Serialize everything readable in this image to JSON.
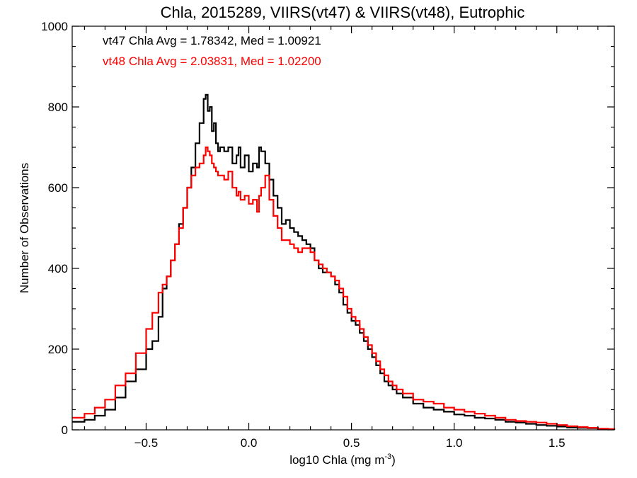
{
  "chart_data": {
    "type": "line",
    "title": "Chla, 2015289, VIIRS(vt47) & VIIRS(vt48), Eutrophic",
    "xlabel_main": "log10 Chla (mg m",
    "xlabel_sup": "-3",
    "xlabel_end": ")",
    "ylabel": "Number of Observations",
    "xlim": [
      -0.86,
      1.78
    ],
    "ylim": [
      0,
      1000
    ],
    "xticks": [
      -0.5,
      0.0,
      0.5,
      1.0,
      1.5
    ],
    "xtick_labels": [
      "−0.5",
      "0.0",
      "0.5",
      "1.0",
      "1.5"
    ],
    "yticks": [
      0,
      200,
      400,
      600,
      800,
      1000
    ],
    "ytick_labels": [
      "0",
      "200",
      "400",
      "600",
      "800",
      "1000"
    ],
    "grid": false,
    "annotations": [
      {
        "text": "vt47 Chla Avg = 1.78342, Med = 1.00921",
        "color": "#000000"
      },
      {
        "text": "vt48 Chla Avg = 2.03831, Med = 1.02200",
        "color": "#ff0000"
      }
    ],
    "series": [
      {
        "color": "#000000",
        "points": [
          [
            -0.86,
            20
          ],
          [
            -0.8,
            25
          ],
          [
            -0.75,
            35
          ],
          [
            -0.7,
            50
          ],
          [
            -0.65,
            80
          ],
          [
            -0.6,
            120
          ],
          [
            -0.55,
            150
          ],
          [
            -0.5,
            200
          ],
          [
            -0.47,
            220
          ],
          [
            -0.44,
            280
          ],
          [
            -0.42,
            350
          ],
          [
            -0.4,
            380
          ],
          [
            -0.38,
            420
          ],
          [
            -0.36,
            460
          ],
          [
            -0.34,
            510
          ],
          [
            -0.32,
            550
          ],
          [
            -0.3,
            600
          ],
          [
            -0.28,
            650
          ],
          [
            -0.26,
            710
          ],
          [
            -0.24,
            760
          ],
          [
            -0.22,
            820
          ],
          [
            -0.21,
            830
          ],
          [
            -0.2,
            790
          ],
          [
            -0.19,
            800
          ],
          [
            -0.18,
            740
          ],
          [
            -0.17,
            760
          ],
          [
            -0.16,
            710
          ],
          [
            -0.15,
            690
          ],
          [
            -0.14,
            700
          ],
          [
            -0.12,
            690
          ],
          [
            -0.1,
            700
          ],
          [
            -0.08,
            660
          ],
          [
            -0.06,
            680
          ],
          [
            -0.05,
            700
          ],
          [
            -0.04,
            650
          ],
          [
            -0.02,
            680
          ],
          [
            0.0,
            640
          ],
          [
            0.02,
            660
          ],
          [
            0.04,
            650
          ],
          [
            0.05,
            700
          ],
          [
            0.06,
            690
          ],
          [
            0.08,
            660
          ],
          [
            0.1,
            620
          ],
          [
            0.12,
            580
          ],
          [
            0.14,
            550
          ],
          [
            0.16,
            510
          ],
          [
            0.18,
            520
          ],
          [
            0.2,
            500
          ],
          [
            0.22,
            490
          ],
          [
            0.24,
            480
          ],
          [
            0.26,
            470
          ],
          [
            0.28,
            460
          ],
          [
            0.3,
            450
          ],
          [
            0.32,
            420
          ],
          [
            0.34,
            400
          ],
          [
            0.36,
            390
          ],
          [
            0.38,
            390
          ],
          [
            0.4,
            380
          ],
          [
            0.42,
            360
          ],
          [
            0.44,
            340
          ],
          [
            0.46,
            310
          ],
          [
            0.48,
            290
          ],
          [
            0.5,
            270
          ],
          [
            0.52,
            260
          ],
          [
            0.54,
            240
          ],
          [
            0.56,
            220
          ],
          [
            0.58,
            200
          ],
          [
            0.6,
            180
          ],
          [
            0.62,
            160
          ],
          [
            0.64,
            140
          ],
          [
            0.66,
            120
          ],
          [
            0.68,
            110
          ],
          [
            0.7,
            100
          ],
          [
            0.72,
            90
          ],
          [
            0.75,
            80
          ],
          [
            0.8,
            65
          ],
          [
            0.85,
            55
          ],
          [
            0.9,
            50
          ],
          [
            0.95,
            45
          ],
          [
            1.0,
            38
          ],
          [
            1.05,
            35
          ],
          [
            1.1,
            30
          ],
          [
            1.15,
            28
          ],
          [
            1.2,
            25
          ],
          [
            1.25,
            20
          ],
          [
            1.3,
            18
          ],
          [
            1.35,
            15
          ],
          [
            1.4,
            12
          ],
          [
            1.45,
            10
          ],
          [
            1.5,
            8
          ],
          [
            1.55,
            6
          ],
          [
            1.6,
            5
          ],
          [
            1.65,
            4
          ],
          [
            1.7,
            2
          ],
          [
            1.75,
            1
          ],
          [
            1.78,
            0
          ]
        ]
      },
      {
        "color": "#ff0000",
        "points": [
          [
            -0.86,
            30
          ],
          [
            -0.8,
            40
          ],
          [
            -0.75,
            55
          ],
          [
            -0.7,
            75
          ],
          [
            -0.65,
            110
          ],
          [
            -0.6,
            140
          ],
          [
            -0.55,
            190
          ],
          [
            -0.5,
            250
          ],
          [
            -0.47,
            290
          ],
          [
            -0.44,
            340
          ],
          [
            -0.42,
            360
          ],
          [
            -0.4,
            380
          ],
          [
            -0.38,
            420
          ],
          [
            -0.36,
            460
          ],
          [
            -0.34,
            500
          ],
          [
            -0.32,
            550
          ],
          [
            -0.3,
            600
          ],
          [
            -0.28,
            630
          ],
          [
            -0.26,
            650
          ],
          [
            -0.24,
            660
          ],
          [
            -0.22,
            680
          ],
          [
            -0.21,
            700
          ],
          [
            -0.2,
            690
          ],
          [
            -0.19,
            680
          ],
          [
            -0.18,
            660
          ],
          [
            -0.17,
            650
          ],
          [
            -0.16,
            640
          ],
          [
            -0.15,
            630
          ],
          [
            -0.14,
            630
          ],
          [
            -0.12,
            620
          ],
          [
            -0.1,
            640
          ],
          [
            -0.08,
            600
          ],
          [
            -0.06,
            580
          ],
          [
            -0.05,
            590
          ],
          [
            -0.04,
            570
          ],
          [
            -0.02,
            580
          ],
          [
            0.0,
            560
          ],
          [
            0.02,
            570
          ],
          [
            0.04,
            540
          ],
          [
            0.05,
            580
          ],
          [
            0.06,
            600
          ],
          [
            0.08,
            630
          ],
          [
            0.1,
            570
          ],
          [
            0.12,
            530
          ],
          [
            0.14,
            500
          ],
          [
            0.16,
            470
          ],
          [
            0.18,
            470
          ],
          [
            0.2,
            460
          ],
          [
            0.22,
            450
          ],
          [
            0.24,
            440
          ],
          [
            0.26,
            450
          ],
          [
            0.28,
            450
          ],
          [
            0.3,
            440
          ],
          [
            0.32,
            420
          ],
          [
            0.34,
            410
          ],
          [
            0.36,
            400
          ],
          [
            0.38,
            390
          ],
          [
            0.4,
            380
          ],
          [
            0.42,
            370
          ],
          [
            0.44,
            350
          ],
          [
            0.46,
            330
          ],
          [
            0.48,
            300
          ],
          [
            0.5,
            280
          ],
          [
            0.52,
            270
          ],
          [
            0.54,
            250
          ],
          [
            0.56,
            230
          ],
          [
            0.58,
            210
          ],
          [
            0.6,
            190
          ],
          [
            0.62,
            170
          ],
          [
            0.64,
            150
          ],
          [
            0.66,
            135
          ],
          [
            0.68,
            120
          ],
          [
            0.7,
            110
          ],
          [
            0.72,
            100
          ],
          [
            0.75,
            90
          ],
          [
            0.8,
            75
          ],
          [
            0.85,
            70
          ],
          [
            0.9,
            65
          ],
          [
            0.95,
            55
          ],
          [
            1.0,
            50
          ],
          [
            1.05,
            45
          ],
          [
            1.1,
            40
          ],
          [
            1.15,
            35
          ],
          [
            1.2,
            30
          ],
          [
            1.25,
            25
          ],
          [
            1.3,
            22
          ],
          [
            1.35,
            20
          ],
          [
            1.4,
            18
          ],
          [
            1.45,
            15
          ],
          [
            1.5,
            12
          ],
          [
            1.55,
            9
          ],
          [
            1.6,
            7
          ],
          [
            1.65,
            5
          ],
          [
            1.7,
            3
          ],
          [
            1.75,
            2
          ],
          [
            1.78,
            1
          ]
        ]
      }
    ]
  }
}
